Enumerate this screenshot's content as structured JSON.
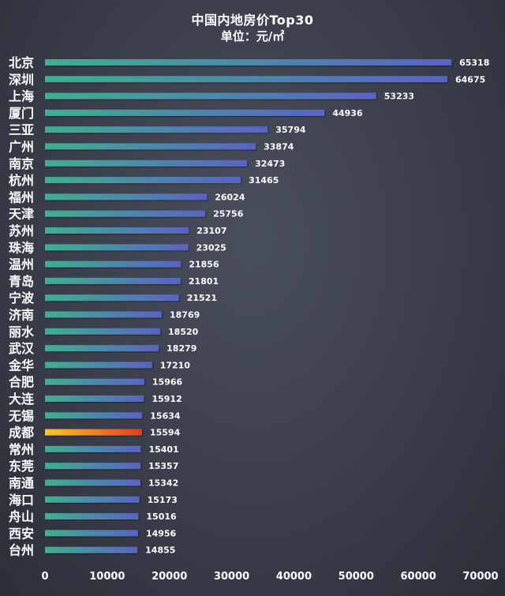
{
  "chart_data": {
    "type": "bar",
    "orientation": "horizontal",
    "title": "中国内地房价Top30",
    "subtitle": "单位：元/㎡",
    "categories": [
      "北京",
      "深圳",
      "上海",
      "厦门",
      "三亚",
      "广州",
      "南京",
      "杭州",
      "福州",
      "天津",
      "苏州",
      "珠海",
      "温州",
      "青岛",
      "宁波",
      "济南",
      "丽水",
      "武汉",
      "金华",
      "合肥",
      "大连",
      "无锡",
      "成都",
      "常州",
      "东莞",
      "南通",
      "海口",
      "舟山",
      "西安",
      "台州"
    ],
    "values": [
      65318,
      64675,
      53233,
      44936,
      35794,
      33874,
      32473,
      31465,
      26024,
      25756,
      23107,
      23025,
      21856,
      21801,
      21521,
      18769,
      18520,
      18279,
      17210,
      15966,
      15912,
      15634,
      15594,
      15401,
      15357,
      15342,
      15173,
      15016,
      14956,
      14855
    ],
    "value_labels": [
      "65318",
      "64675",
      "53233",
      "44936",
      "35794",
      "33874",
      "32473",
      "31465",
      "26024",
      "25756",
      "23107",
      "23025",
      "21856",
      "21801",
      "21521",
      "18769",
      "18520",
      "18279",
      "17210",
      "15966",
      "15912",
      "15634",
      "15594",
      "15401",
      "15357",
      "15342",
      "15173",
      "15016",
      "14956",
      "14855"
    ],
    "highlight_category": "成都",
    "xlim": [
      0,
      70000
    ],
    "x_ticks": [
      0,
      10000,
      20000,
      30000,
      40000,
      50000,
      60000,
      70000
    ],
    "x_tick_labels": [
      "0",
      "10000",
      "20000",
      "30000",
      "40000",
      "50000",
      "60000",
      "70000"
    ],
    "grid": false,
    "legend": "none",
    "colors": {
      "bar_start": "#3fb08f",
      "bar_end": "#5a63c4",
      "highlight_start": "#f5c830",
      "highlight_end": "#e0401e",
      "text": "#ffffff"
    }
  }
}
